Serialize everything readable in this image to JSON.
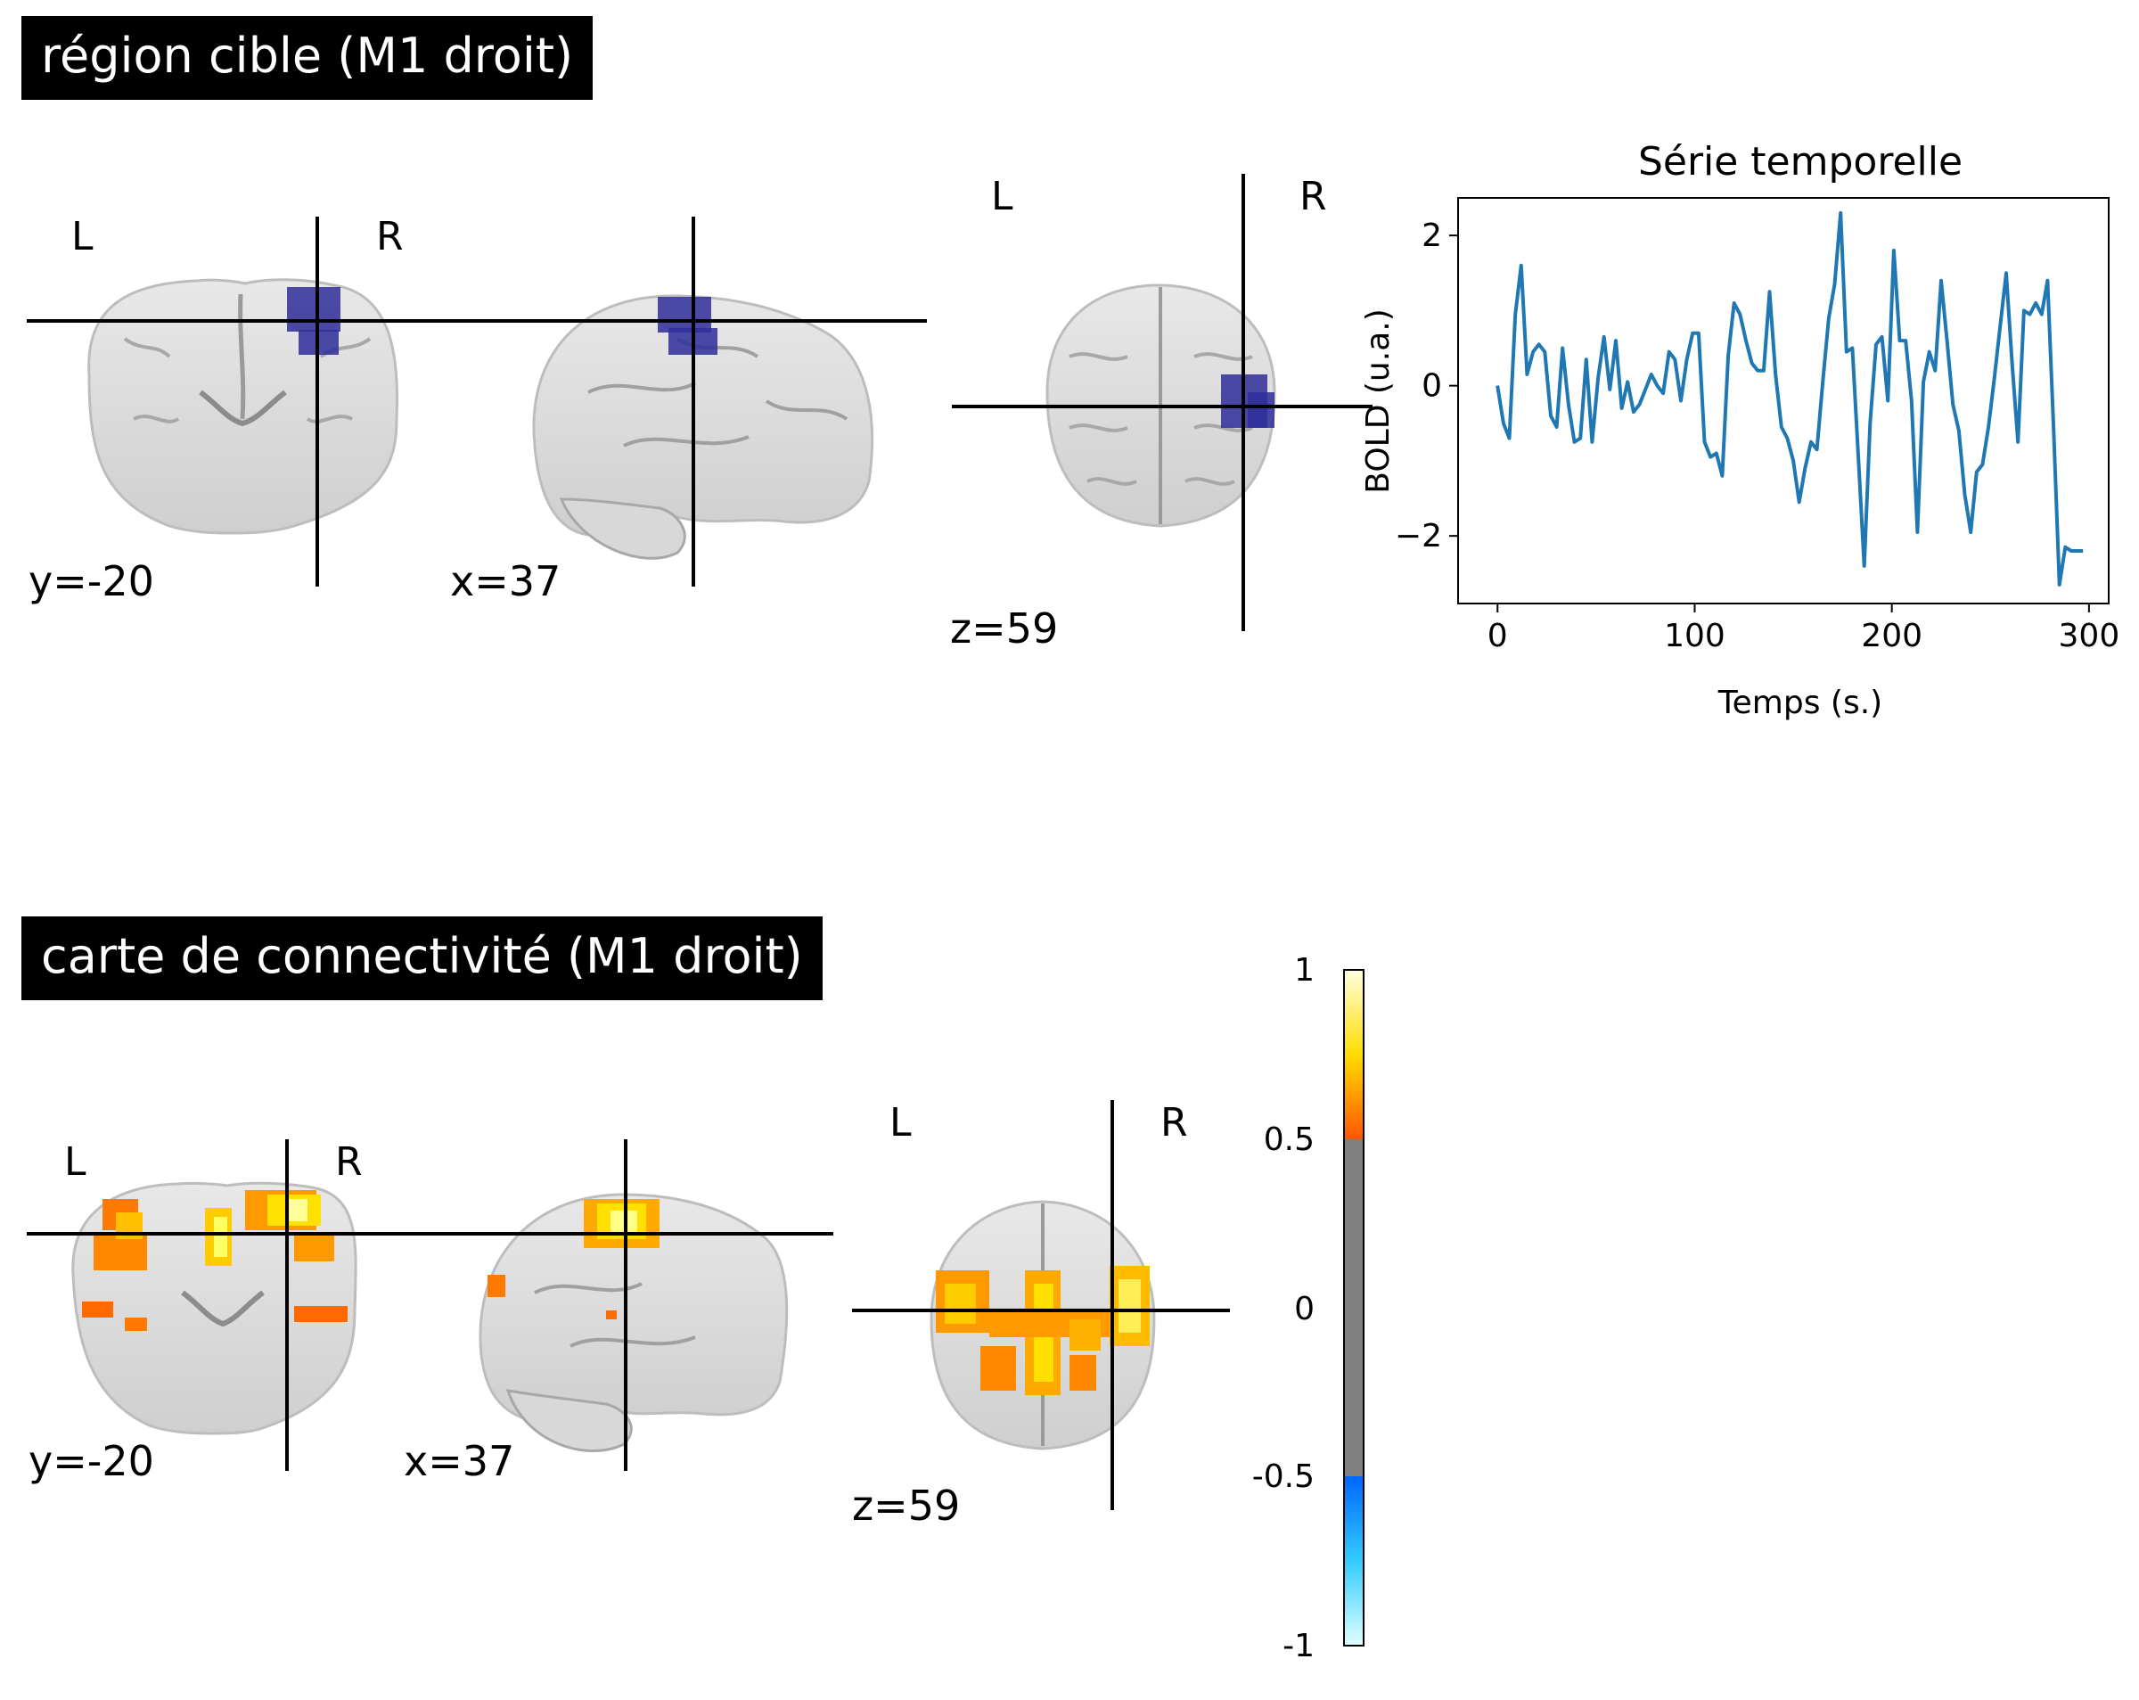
{
  "panels": {
    "seed": {
      "title": "région cible (M1 droit)",
      "views": [
        {
          "left": "L",
          "right": "R",
          "coord": "y=-20"
        },
        {
          "coord": "x=37"
        },
        {
          "left": "L",
          "right": "R",
          "coord": "z=59"
        }
      ],
      "overlay_color": "#2e2e9a"
    },
    "connectivity": {
      "title": "carte de connectivité (M1 droit)",
      "views": [
        {
          "left": "L",
          "right": "R",
          "coord": "y=-20"
        },
        {
          "coord": "x=37"
        },
        {
          "left": "L",
          "right": "R",
          "coord": "z=59"
        }
      ],
      "colormap": "cold_hot",
      "colorbar": {
        "ticks": [
          "1",
          "0.5",
          "0",
          "-0.5",
          "-1"
        ],
        "range": [
          -1,
          1
        ],
        "threshold": 0.5,
        "colors": {
          "hot_low": "#ff5500",
          "hot_mid": "#ffcc00",
          "hot_high": "#ffffe0",
          "neutral": "#808080",
          "cold_low": "#0066ff",
          "cold_high": "#e0ffff"
        }
      }
    }
  },
  "chart_data": {
    "type": "line",
    "title": "Série temporelle",
    "xlabel": "Temps (s.)",
    "ylabel": "BOLD (u.a.)",
    "xlim": [
      -20,
      310
    ],
    "ylim": [
      -2.9,
      2.5
    ],
    "xticks": [
      "0",
      "100",
      "200",
      "300"
    ],
    "xtick_values": [
      0,
      100,
      200,
      300
    ],
    "yticks": [
      "2",
      "0",
      "−2"
    ],
    "ytick_values": [
      2,
      0,
      -2
    ],
    "series": [
      {
        "color": "#1f77b4",
        "x": [
          0,
          3,
          6,
          9,
          12,
          15,
          18,
          21,
          24,
          27,
          30,
          33,
          36,
          39,
          42,
          45,
          48,
          51,
          54,
          57,
          60,
          63,
          66,
          69,
          72,
          75,
          78,
          81,
          84,
          87,
          90,
          93,
          96,
          99,
          102,
          105,
          108,
          111,
          114,
          117,
          120,
          123,
          126,
          129,
          132,
          135,
          138,
          141,
          144,
          147,
          150,
          153,
          156,
          159,
          162,
          165,
          168,
          171,
          174,
          177,
          180,
          183,
          186,
          189,
          192,
          195,
          198,
          201,
          204,
          207,
          210,
          213,
          216,
          219,
          222,
          225,
          228,
          231,
          234,
          237,
          240,
          243,
          246,
          249,
          252,
          255,
          258,
          261,
          264,
          267,
          270,
          273,
          276,
          279,
          282,
          285,
          288,
          291,
          294,
          297
        ],
        "y": [
          0.0,
          -0.5,
          -0.7,
          0.95,
          1.6,
          0.15,
          0.45,
          0.55,
          0.45,
          -0.4,
          -0.55,
          0.5,
          -0.25,
          -0.75,
          -0.7,
          0.35,
          -0.75,
          0.1,
          0.65,
          -0.05,
          0.6,
          -0.3,
          0.05,
          -0.35,
          -0.25,
          -0.05,
          0.15,
          0.0,
          -0.1,
          0.45,
          0.35,
          -0.2,
          0.35,
          0.7,
          0.7,
          -0.75,
          -0.95,
          -0.9,
          -1.2,
          0.4,
          1.1,
          0.95,
          0.6,
          0.3,
          0.2,
          0.2,
          1.25,
          0.15,
          -0.55,
          -0.7,
          -1.0,
          -1.55,
          -1.1,
          -0.75,
          -0.85,
          0.05,
          0.9,
          1.35,
          2.3,
          0.45,
          0.5,
          -0.95,
          -2.4,
          -0.5,
          0.55,
          0.65,
          -0.2,
          1.8,
          0.6,
          0.6,
          -0.2,
          -1.95,
          0.05,
          0.45,
          0.2,
          1.4,
          0.6,
          -0.25,
          -0.6,
          -1.45,
          -1.95,
          -1.15,
          -1.05,
          -0.55,
          0.1,
          0.8,
          1.5,
          0.3,
          -0.75,
          1.0,
          0.95,
          1.1,
          0.95,
          1.4,
          -0.55,
          -2.65,
          -2.15,
          -2.2,
          -2.2,
          -2.2
        ]
      }
    ]
  }
}
